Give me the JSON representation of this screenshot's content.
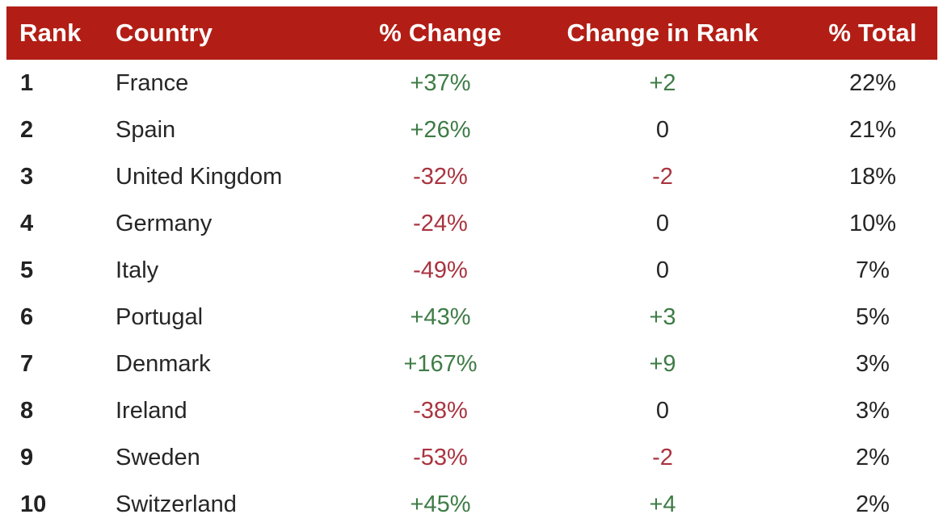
{
  "colors": {
    "page_bg": "#FFFFFF",
    "header_bg": "#B21E15",
    "header_text": "#FFFFFF",
    "positive": "#3E7C46",
    "negative": "#A93440",
    "body_text": "#262626",
    "rank_text": "#222222"
  },
  "chart_data": {
    "type": "table",
    "title": "",
    "columns": [
      "Rank",
      "Country",
      "% Change",
      "Change in Rank",
      "% Total"
    ],
    "rows": [
      {
        "rank": "1",
        "country": "France",
        "pct_change": "+37%",
        "pct_change_tone": "positive",
        "change_in_rank": "+2",
        "change_in_rank_tone": "positive",
        "pct_total": "22%"
      },
      {
        "rank": "2",
        "country": "Spain",
        "pct_change": "+26%",
        "pct_change_tone": "positive",
        "change_in_rank": "0",
        "change_in_rank_tone": "neutral",
        "pct_total": "21%"
      },
      {
        "rank": "3",
        "country": "United Kingdom",
        "pct_change": "-32%",
        "pct_change_tone": "negative",
        "change_in_rank": "-2",
        "change_in_rank_tone": "negative",
        "pct_total": "18%"
      },
      {
        "rank": "4",
        "country": "Germany",
        "pct_change": "-24%",
        "pct_change_tone": "negative",
        "change_in_rank": "0",
        "change_in_rank_tone": "neutral",
        "pct_total": "10%"
      },
      {
        "rank": "5",
        "country": "Italy",
        "pct_change": "-49%",
        "pct_change_tone": "negative",
        "change_in_rank": "0",
        "change_in_rank_tone": "neutral",
        "pct_total": "7%"
      },
      {
        "rank": "6",
        "country": "Portugal",
        "pct_change": "+43%",
        "pct_change_tone": "positive",
        "change_in_rank": "+3",
        "change_in_rank_tone": "positive",
        "pct_total": "5%"
      },
      {
        "rank": "7",
        "country": "Denmark",
        "pct_change": "+167%",
        "pct_change_tone": "positive",
        "change_in_rank": "+9",
        "change_in_rank_tone": "positive",
        "pct_total": "3%"
      },
      {
        "rank": "8",
        "country": "Ireland",
        "pct_change": "-38%",
        "pct_change_tone": "negative",
        "change_in_rank": "0",
        "change_in_rank_tone": "neutral",
        "pct_total": "3%"
      },
      {
        "rank": "9",
        "country": "Sweden",
        "pct_change": "-53%",
        "pct_change_tone": "negative",
        "change_in_rank": "-2",
        "change_in_rank_tone": "negative",
        "pct_total": "2%"
      },
      {
        "rank": "10",
        "country": "Switzerland",
        "pct_change": "+45%",
        "pct_change_tone": "positive",
        "change_in_rank": "+4",
        "change_in_rank_tone": "positive",
        "pct_total": "2%"
      }
    ]
  }
}
